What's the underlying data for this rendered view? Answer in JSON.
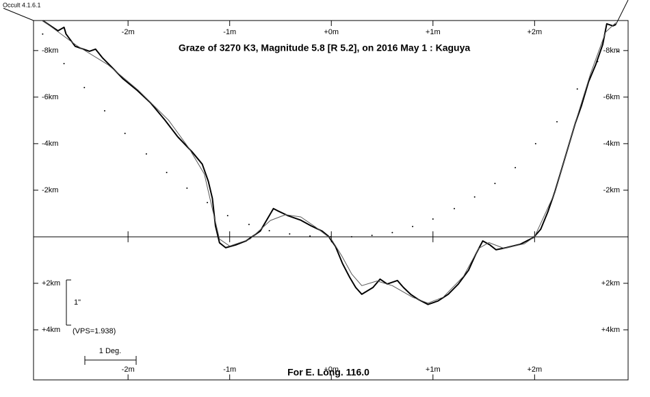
{
  "chart_data": {
    "type": "line",
    "title": "Graze of  3270 K3,  Magnitude 5.8 [R 5.2],  on 2016 May  1  :  Kaguya",
    "software": "Occult 4.1.6.1",
    "footer": "For E. Long. 116.0",
    "scale_label": "1\"",
    "vps_label": "(VPS=1.938)",
    "degree_label": "1 Deg.",
    "xlim": [
      -2.93,
      2.92
    ],
    "ylim": [
      6.15,
      -9.29
    ],
    "xticks": [
      {
        "value": -2,
        "label": "-2m"
      },
      {
        "value": -1,
        "label": "-1m"
      },
      {
        "value": 0,
        "label": "+0m"
      },
      {
        "value": 1,
        "label": "+1m"
      },
      {
        "value": 2,
        "label": "+2m"
      }
    ],
    "yticks": [
      {
        "value": -8,
        "label": "-8km"
      },
      {
        "value": -6,
        "label": "-6km"
      },
      {
        "value": -4,
        "label": "-4km"
      },
      {
        "value": -2,
        "label": "-2km"
      },
      {
        "value": 2,
        "label": "+2km"
      },
      {
        "value": 4,
        "label": "+4km"
      }
    ],
    "series": [
      {
        "color": "#000000",
        "style": "thick",
        "x": [
          -2.84,
          -2.69,
          -2.63,
          -2.61,
          -2.52,
          -2.38,
          -2.32,
          -2.25,
          -2.15,
          -2.05,
          -1.91,
          -1.78,
          -1.64,
          -1.51,
          -1.37,
          -1.27,
          -1.21,
          -1.17,
          -1.14,
          -1.1,
          -1.04,
          -0.94,
          -0.84,
          -0.7,
          -0.57,
          -0.53,
          -0.43,
          -0.3,
          -0.2,
          -0.09,
          -0.03,
          0.04,
          0.11,
          0.18,
          0.24,
          0.3,
          0.41,
          0.48,
          0.55,
          0.65,
          0.71,
          0.78,
          0.85,
          0.95,
          1.05,
          1.15,
          1.25,
          1.35,
          1.42,
          1.49,
          1.56,
          1.62,
          1.72,
          1.86,
          1.99,
          2.06,
          2.13,
          2.2,
          2.26,
          2.33,
          2.4,
          2.46,
          2.53,
          2.6,
          2.67,
          2.71,
          2.77,
          2.8
        ],
        "values": [
          -9.29,
          -8.85,
          -9.0,
          -8.71,
          -8.18,
          -7.97,
          -8.06,
          -7.68,
          -7.24,
          -6.79,
          -6.29,
          -5.76,
          -5.03,
          -4.29,
          -3.65,
          -3.12,
          -2.38,
          -1.65,
          -0.47,
          0.26,
          0.47,
          0.35,
          0.18,
          -0.24,
          -1.21,
          -1.12,
          -0.91,
          -0.71,
          -0.47,
          -0.24,
          -0.03,
          0.41,
          1.15,
          1.74,
          2.18,
          2.47,
          2.18,
          1.82,
          2.03,
          1.88,
          2.18,
          2.47,
          2.68,
          2.91,
          2.76,
          2.47,
          2.03,
          1.44,
          0.76,
          0.18,
          0.35,
          0.56,
          0.47,
          0.32,
          0.03,
          -0.32,
          -1.06,
          -1.94,
          -2.82,
          -3.85,
          -4.88,
          -5.62,
          -6.65,
          -7.38,
          -8.26,
          -9.15,
          -9.06,
          -9.12
        ]
      },
      {
        "color": "#555555",
        "style": "thin",
        "x": [
          -2.84,
          -2.5,
          -2.2,
          -1.9,
          -1.6,
          -1.4,
          -1.25,
          -1.17,
          -1.1,
          -1.0,
          -0.8,
          -0.6,
          -0.45,
          -0.3,
          -0.15,
          0.0,
          0.1,
          0.2,
          0.3,
          0.45,
          0.6,
          0.8,
          0.95,
          1.1,
          1.3,
          1.45,
          1.55,
          1.7,
          1.9,
          2.0,
          2.2,
          2.4,
          2.55,
          2.7,
          2.8
        ],
        "values": [
          -9.29,
          -8.2,
          -7.4,
          -6.3,
          -5.0,
          -3.8,
          -2.7,
          -1.2,
          0.1,
          0.4,
          0.1,
          -0.7,
          -0.95,
          -0.85,
          -0.4,
          0.1,
          0.8,
          1.6,
          2.1,
          1.9,
          2.1,
          2.6,
          2.85,
          2.6,
          1.7,
          0.5,
          0.25,
          0.5,
          0.3,
          0.0,
          -1.9,
          -4.9,
          -7.0,
          -8.8,
          -9.2
        ]
      },
      {
        "color": "#000000",
        "style": "dots",
        "x": [
          -2.84,
          -2.63,
          -2.43,
          -2.23,
          -2.03,
          -1.82,
          -1.62,
          -1.42,
          -1.22,
          -1.02,
          -0.81,
          -0.61,
          -0.41,
          -0.21,
          -0.01,
          0.2,
          0.4,
          0.6,
          0.8,
          1.0,
          1.21,
          1.41,
          1.61,
          1.81,
          2.01,
          2.22,
          2.42,
          2.62,
          2.82
        ],
        "values": [
          -8.71,
          -7.44,
          -6.41,
          -5.41,
          -4.44,
          -3.56,
          -2.76,
          -2.09,
          -1.47,
          -0.91,
          -0.53,
          -0.26,
          -0.12,
          -0.03,
          0,
          0,
          -0.06,
          -0.18,
          -0.44,
          -0.76,
          -1.21,
          -1.71,
          -2.29,
          -2.97,
          -4.0,
          -4.94,
          -6.35,
          -7.53,
          -7.97
        ]
      }
    ]
  }
}
